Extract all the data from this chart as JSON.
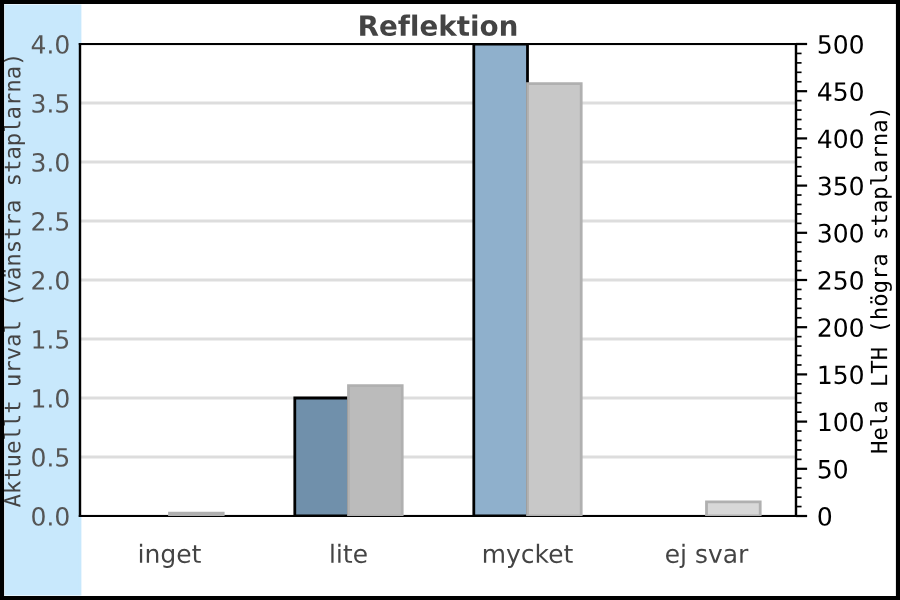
{
  "chart_data": {
    "type": "bar",
    "title": "Reflektion",
    "categories": [
      "inget",
      "lite",
      "mycket",
      "ej svar"
    ],
    "ylabel": "Aktuellt urval (vänstra staplarna)",
    "y2label": "Hela LTH (högra staplarna)",
    "ylim": [
      0,
      4.0
    ],
    "yticks": [
      {
        "value": 0,
        "label": "0.0"
      },
      0.5,
      {
        "value": 1,
        "label": "1.0"
      },
      1.5,
      {
        "value": 2,
        "label": "2.0"
      },
      2.5,
      {
        "value": 3,
        "label": "3.0"
      },
      3.5,
      {
        "value": 4,
        "label": "4.0"
      }
    ],
    "y2lim": [
      0,
      500
    ],
    "y2ticks": [
      0,
      50,
      100,
      150,
      200,
      250,
      300,
      350,
      400,
      450,
      500
    ],
    "grid": "y",
    "legend": false,
    "series": [
      {
        "colors": [
          "#7090ab",
          "#7090ab",
          "#8fb0cc",
          "#7090ab"
        ],
        "values": [
          null,
          1,
          4,
          null
        ]
      },
      {
        "axis": "y2",
        "colors": [
          "#808080",
          "#bbbbbb",
          "#c8c8c8",
          "#d8d8d8"
        ],
        "values": [
          3,
          138,
          458,
          15
        ]
      }
    ]
  }
}
